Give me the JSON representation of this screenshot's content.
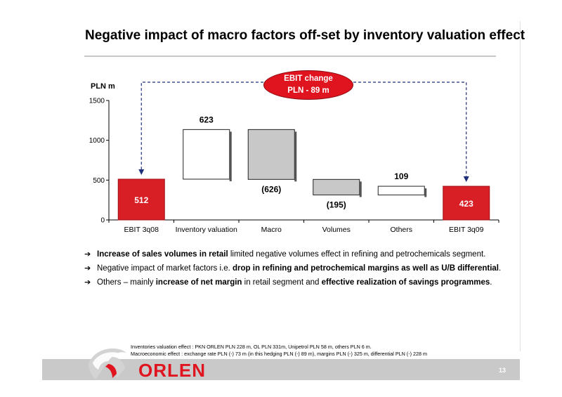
{
  "title": "Negative impact of macro factors off-set by inventory valuation effect",
  "callout": {
    "line1": "EBIT change",
    "line2": "PLN - 89 m"
  },
  "chart_data": {
    "type": "bar",
    "subtype": "waterfall",
    "ylabel": "PLN m",
    "ylim": [
      0,
      1500
    ],
    "yticks": [
      "0",
      "500",
      "1000",
      "1500"
    ],
    "categories": [
      "EBIT 3q08",
      "Inventory valuation",
      "Macro",
      "Volumes",
      "Others",
      "EBIT 3q09"
    ],
    "values": [
      512,
      623,
      -626,
      -195,
      109,
      423
    ],
    "data_labels": [
      "512",
      "623",
      "(626)",
      "(195)",
      "109",
      "423"
    ],
    "bar_kinds": [
      "total",
      "increase",
      "decrease",
      "decrease",
      "increase",
      "total"
    ],
    "colors": {
      "total": "#d91f26",
      "increase": "#ffffff",
      "decrease": "#c8c8c8",
      "callout": "#e0141e",
      "arrow": "#1f2f7a"
    }
  },
  "bullets": [
    {
      "bold1": "Increase of sales volumes in retail",
      "text1": " limited negative volumes effect in refining and petrochemicals  segment.",
      "bold2": "",
      "text2": ""
    },
    {
      "bold1": "",
      "text1": "Negative impact of market factors i.e. ",
      "bold2": "drop in refining and petrochemical margins as well as U/B differential",
      "text2": "."
    },
    {
      "bold1": "",
      "text1": "Others – mainly ",
      "bold2": "increase of net margin",
      "text2": " in retail segment and ",
      "bold3": "effective realization of savings programmes",
      "text3": "."
    }
  ],
  "notes": {
    "line1": "Inventories valuation effect : PKN ORLEN PLN 228 m, OL PLN 331m, Unipetrol PLN 58 m, others PLN 6 m.",
    "line2": "Macroeconomic effect : exchange rate PLN (-) 73 m (in this hedging PLN (-) 89 m), margins PLN (-) 325 m, differential PLN (-) 228 m"
  },
  "footer": {
    "logo_text": "ORLEN",
    "page_number": "13"
  }
}
